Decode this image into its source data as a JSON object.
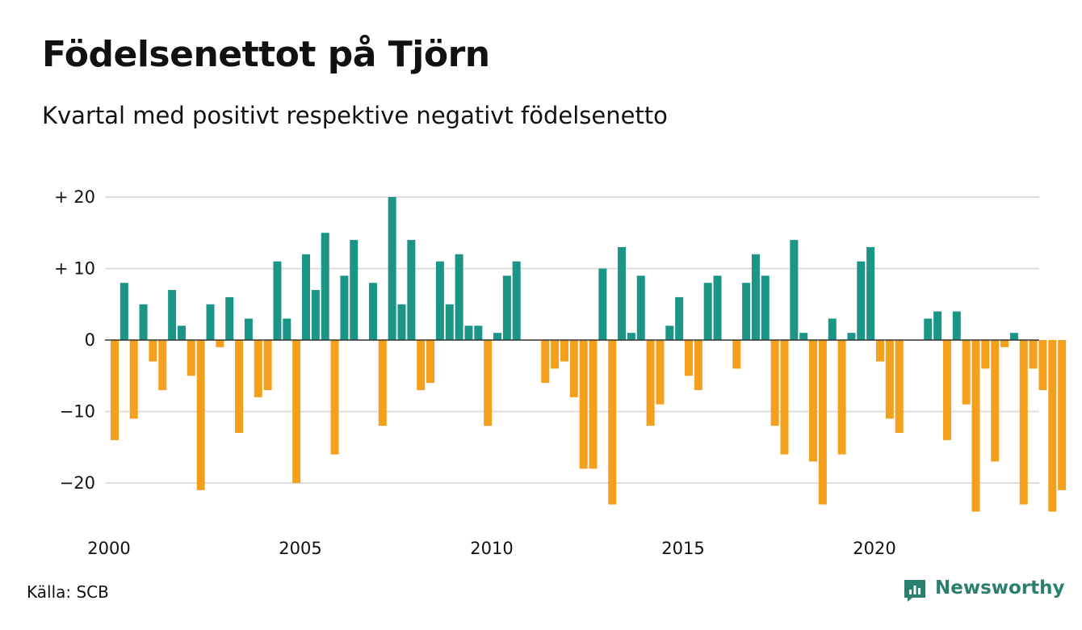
{
  "header": {
    "title": "Födelsenettot på Tjörn",
    "subtitle": "Kvartal med positivt respektive negativt födelsenetto"
  },
  "footer": {
    "source": "Källa: SCB",
    "brand": "Newsworthy",
    "brand_icon": "newsworthy-logo-icon"
  },
  "colors": {
    "positive": "#1b9585",
    "negative": "#f5a01d",
    "grid": "#dddddd",
    "zero_line": "#333333",
    "brand": "#2a7f6f"
  },
  "chart_data": {
    "type": "bar",
    "title": "Födelsenettot på Tjörn",
    "subtitle": "Kvartal med positivt respektive negativt födelsenetto",
    "xlabel": "",
    "ylabel": "",
    "ylim": [
      -25,
      22
    ],
    "yticks": [
      20,
      10,
      0,
      -10,
      -20
    ],
    "ytick_labels": [
      "+ 20",
      "+ 10",
      "0",
      "−10",
      "−20"
    ],
    "xticks": [
      2000,
      2005,
      2010,
      2015,
      2020
    ],
    "xtick_labels": [
      "2000",
      "2005",
      "2010",
      "2015",
      "2020"
    ],
    "grid": true,
    "start_year": 2000,
    "quarters_per_year": 4,
    "values": [
      -14,
      8,
      -11,
      5,
      -3,
      -7,
      7,
      2,
      -5,
      -21,
      5,
      -1,
      6,
      -13,
      3,
      -8,
      -7,
      11,
      3,
      -20,
      12,
      7,
      15,
      -16,
      9,
      14,
      0,
      8,
      -12,
      20,
      5,
      14,
      -7,
      -6,
      11,
      5,
      12,
      2,
      2,
      -12,
      1,
      9,
      11,
      0,
      0,
      -6,
      -4,
      -3,
      -8,
      -18,
      -18,
      10,
      -23,
      13,
      1,
      9,
      -12,
      -9,
      2,
      6,
      -5,
      -7,
      8,
      9,
      0,
      -4,
      8,
      12,
      9,
      -12,
      -16,
      14,
      1,
      -17,
      -23,
      3,
      -16,
      1,
      11,
      13,
      -3,
      -11,
      -13,
      0,
      0,
      3,
      4,
      -14,
      4,
      -9,
      -24,
      -4,
      -17,
      -1,
      1,
      -23,
      -4,
      -7,
      -24,
      -21
    ]
  }
}
